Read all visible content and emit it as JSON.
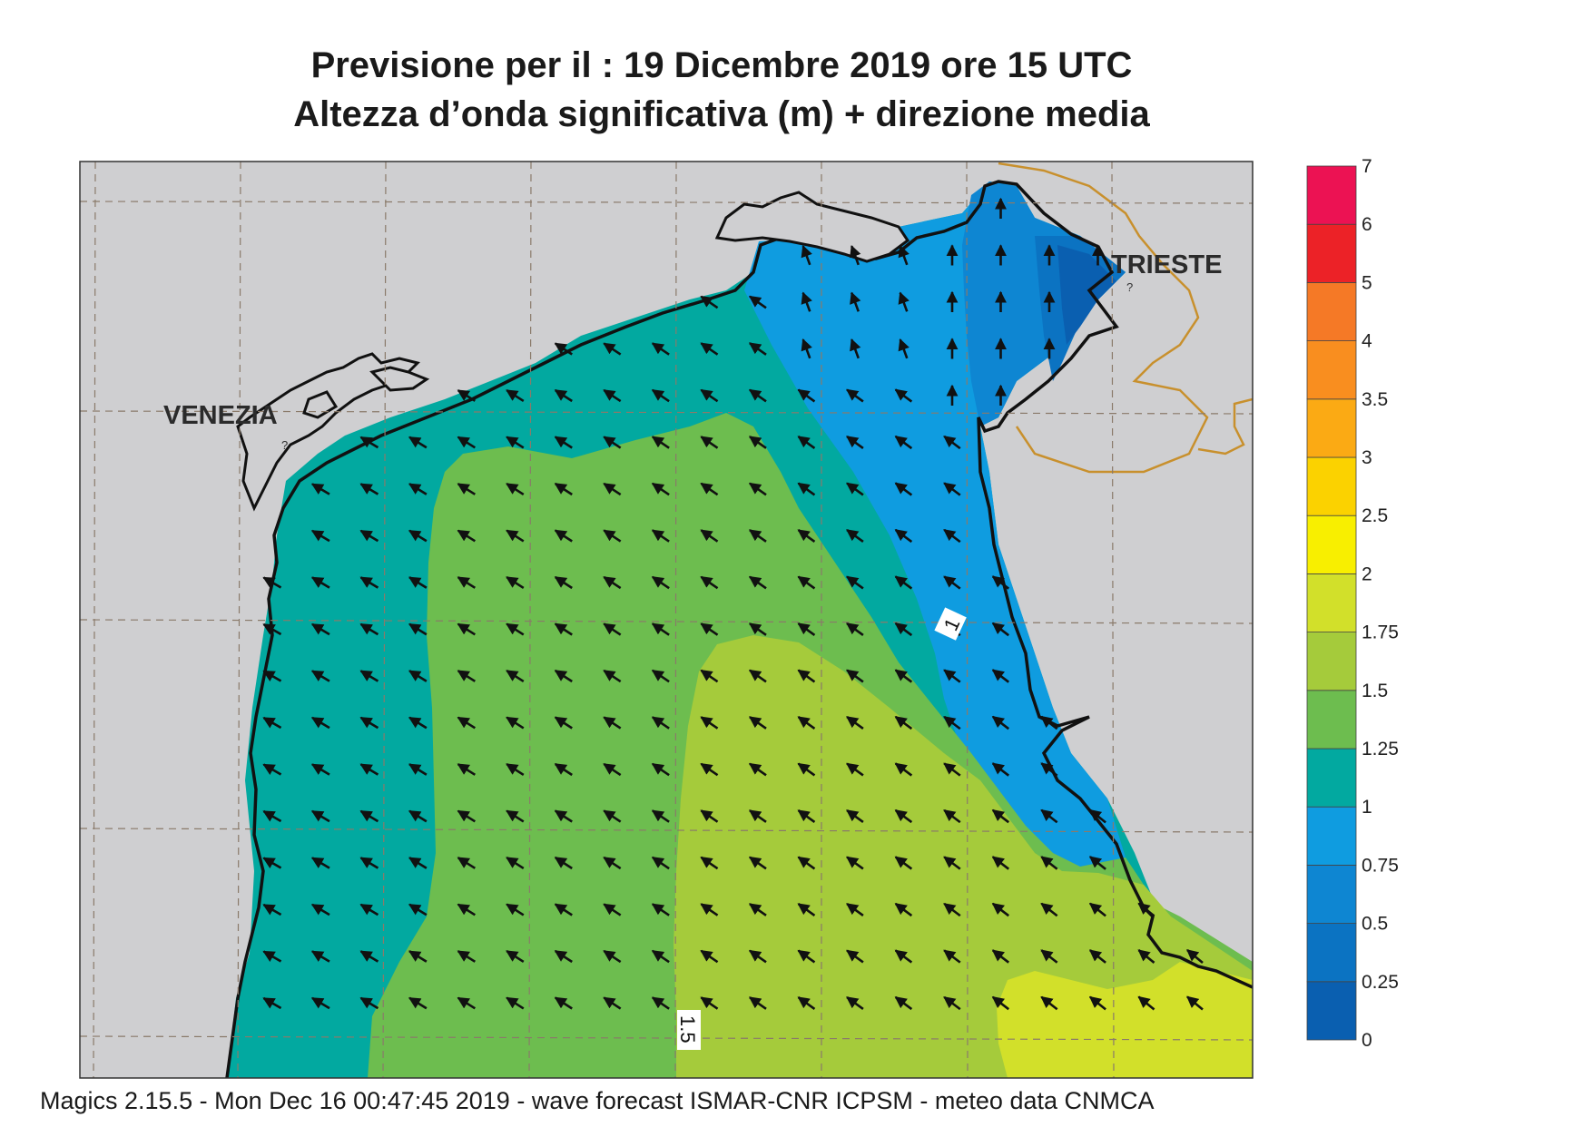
{
  "title_line1": "Previsione per il  :  19 Dicembre  2019   ore 15 UTC",
  "title_line2": "Altezza d’onda significativa (m) + direzione media",
  "footer": "Magics 2.15.5 - Mon Dec 16 00:47:45 2019 - wave forecast  ISMAR-CNR  ICPSM - meteo data   CNMCA",
  "city_labels": [
    "VENEZIA",
    "TRIESTE"
  ],
  "contour_labels": [
    "1",
    "1.5"
  ],
  "legend": [
    {
      "label": "0",
      "color": "#0a5fb0"
    },
    {
      "label": "0.25",
      "color": "#0b73c2"
    },
    {
      "label": "0.5",
      "color": "#0e86d2"
    },
    {
      "label": "0.75",
      "color": "#0f9ce0"
    },
    {
      "label": "1",
      "color": "#02a9a0"
    },
    {
      "label": "1.25",
      "color": "#6dbd4f"
    },
    {
      "label": "1.5",
      "color": "#a5cb3b"
    },
    {
      "label": "1.75",
      "color": "#d2e02a"
    },
    {
      "label": "2",
      "color": "#f8ef00"
    },
    {
      "label": "2.5",
      "color": "#fbd200"
    },
    {
      "label": "3",
      "color": "#fbaa14"
    },
    {
      "label": "3.5",
      "color": "#f98e1f"
    },
    {
      "label": "4",
      "color": "#f57926"
    },
    {
      "label": "5",
      "color": "#ec2227"
    },
    {
      "label": "6",
      "color": "#ec1253"
    },
    {
      "label": "7",
      "color": ""
    }
  ],
  "colors": {
    "land": "#cfcfd1",
    "coast": "#111111",
    "border": "#c8902d",
    "grid": "#8a7a6a"
  },
  "mean_direction": "north-west (arrows point NW, turning north near Trieste)"
}
